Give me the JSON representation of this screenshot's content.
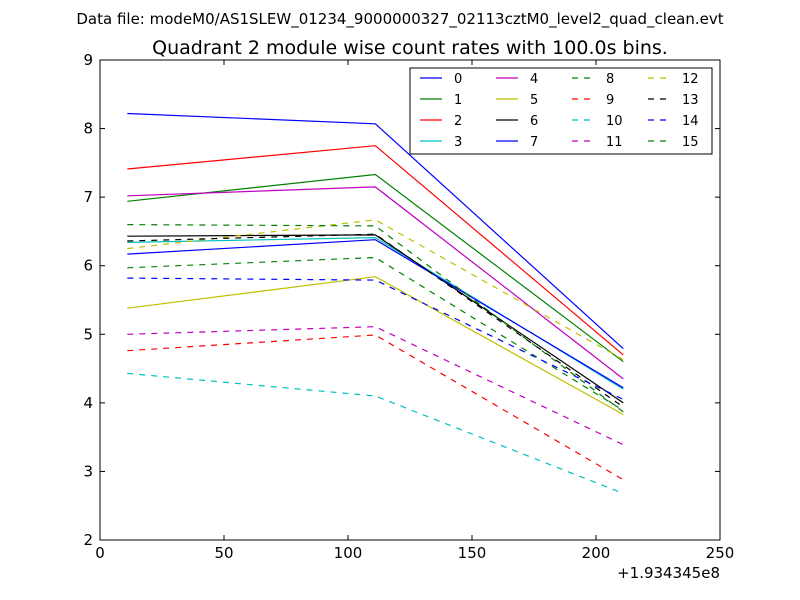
{
  "chart_data": {
    "type": "line",
    "suptitle": "Data file: modeM0/AS1SLEW_01234_9000000327_02113cztM0_level2_quad_clean.evt",
    "title": "Quadrant 2 module wise count rates with 100.0s bins.",
    "xlabel": "",
    "ylabel": "",
    "x_offset_label": "+1.934345e8",
    "xlim": [
      0,
      250
    ],
    "ylim": [
      2,
      9
    ],
    "xticks": [
      "0",
      "50",
      "100",
      "150",
      "200",
      "250"
    ],
    "yticks": [
      "2",
      "3",
      "4",
      "5",
      "6",
      "7",
      "8",
      "9"
    ],
    "grid": false,
    "legend_location": "top-right",
    "x": [
      11,
      111,
      211
    ],
    "series": [
      {
        "name": "0",
        "color": "#0000ff",
        "style": "solid",
        "values": [
          8.22,
          8.07,
          4.79
        ]
      },
      {
        "name": "1",
        "color": "#008000",
        "style": "solid",
        "values": [
          6.94,
          7.33,
          4.6
        ]
      },
      {
        "name": "2",
        "color": "#ff0000",
        "style": "solid",
        "values": [
          7.41,
          7.75,
          4.7
        ]
      },
      {
        "name": "3",
        "color": "#00bfbf",
        "style": "solid",
        "values": [
          6.34,
          6.41,
          4.2
        ]
      },
      {
        "name": "4",
        "color": "#bf00bf",
        "style": "solid",
        "values": [
          7.02,
          7.15,
          4.35
        ]
      },
      {
        "name": "5",
        "color": "#bfbf00",
        "style": "solid",
        "values": [
          5.38,
          5.84,
          3.83
        ]
      },
      {
        "name": "6",
        "color": "#000000",
        "style": "solid",
        "values": [
          6.43,
          6.45,
          4.0
        ]
      },
      {
        "name": "7",
        "color": "#0000ff",
        "style": "solid",
        "values": [
          6.17,
          6.38,
          4.22
        ]
      },
      {
        "name": "8",
        "color": "#008000",
        "style": "dashed",
        "values": [
          5.97,
          6.12,
          3.89
        ]
      },
      {
        "name": "9",
        "color": "#ff0000",
        "style": "dashed",
        "values": [
          4.76,
          4.99,
          2.88
        ]
      },
      {
        "name": "10",
        "color": "#00bfbf",
        "style": "dashed",
        "values": [
          4.43,
          4.1,
          2.68
        ]
      },
      {
        "name": "11",
        "color": "#bf00bf",
        "style": "dashed",
        "values": [
          5.0,
          5.11,
          3.39
        ]
      },
      {
        "name": "12",
        "color": "#bfbf00",
        "style": "dashed",
        "values": [
          6.25,
          6.67,
          4.63
        ]
      },
      {
        "name": "13",
        "color": "#000000",
        "style": "dashed",
        "values": [
          6.36,
          6.46,
          3.94
        ]
      },
      {
        "name": "14",
        "color": "#0000ff",
        "style": "dashed",
        "values": [
          5.82,
          5.79,
          4.05
        ]
      },
      {
        "name": "15",
        "color": "#008000",
        "style": "dashed",
        "values": [
          6.6,
          6.58,
          3.87
        ]
      }
    ]
  }
}
